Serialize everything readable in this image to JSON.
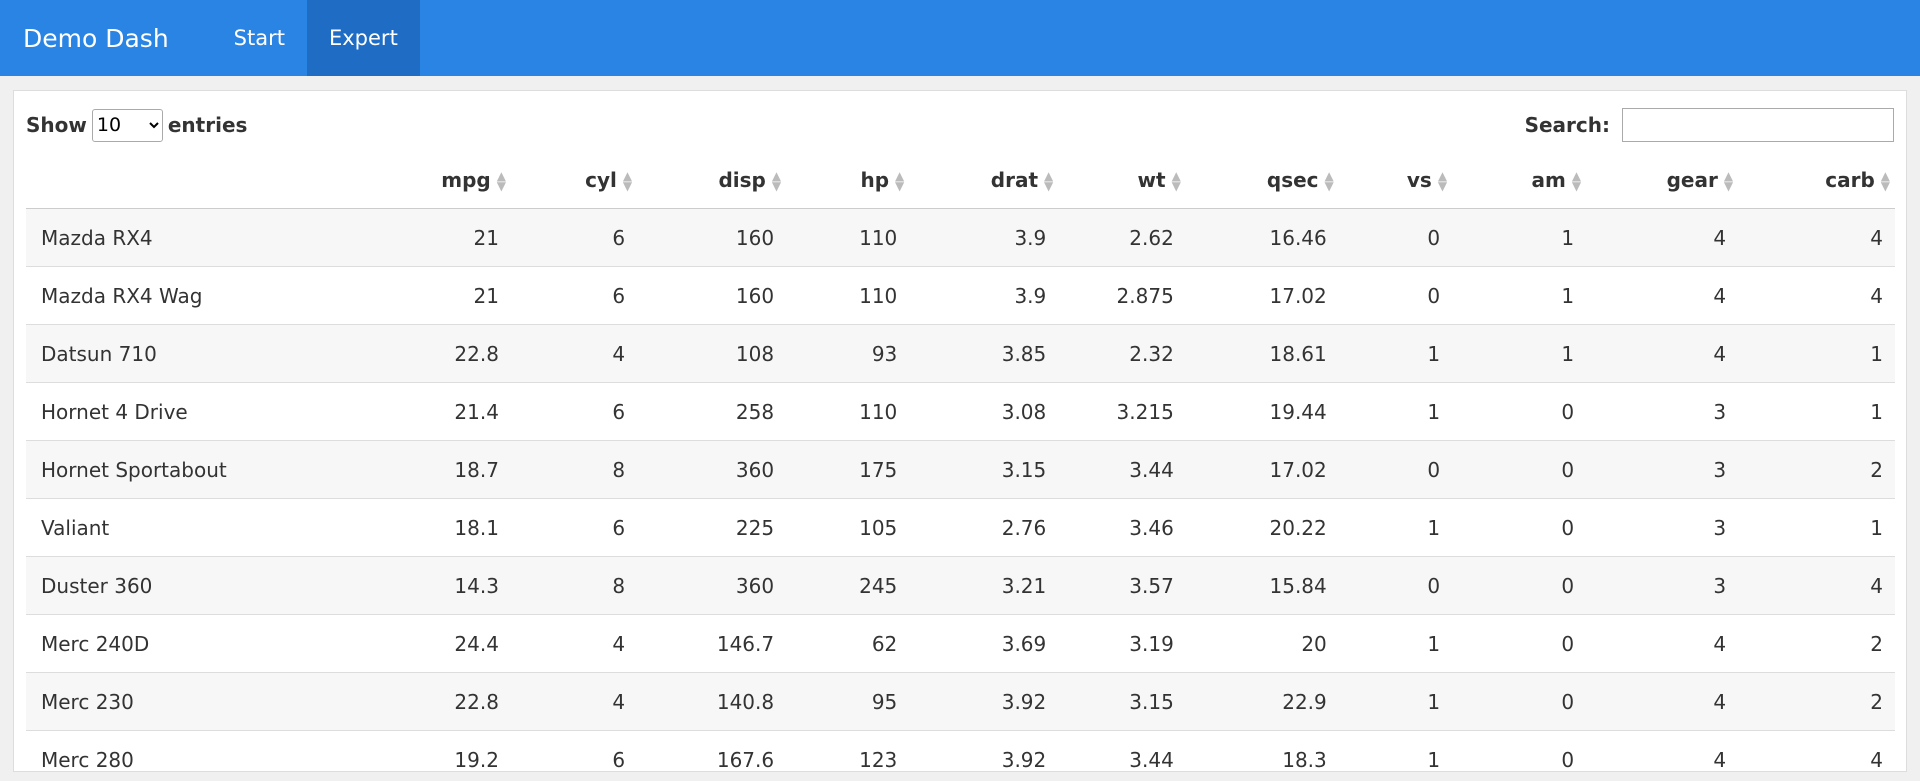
{
  "navbar": {
    "brand": "Demo Dash",
    "items": [
      {
        "label": "Start",
        "active": false
      },
      {
        "label": "Expert",
        "active": true
      }
    ]
  },
  "controls": {
    "show_label": "Show",
    "entries_value": "10",
    "entries_label": "entries",
    "search_label": "Search:",
    "search_value": ""
  },
  "table": {
    "columns": [
      "",
      "mpg",
      "cyl",
      "disp",
      "hp",
      "drat",
      "wt",
      "qsec",
      "vs",
      "am",
      "gear",
      "carb"
    ],
    "rows": [
      [
        "Mazda RX4",
        "21",
        "6",
        "160",
        "110",
        "3.9",
        "2.62",
        "16.46",
        "0",
        "1",
        "4",
        "4"
      ],
      [
        "Mazda RX4 Wag",
        "21",
        "6",
        "160",
        "110",
        "3.9",
        "2.875",
        "17.02",
        "0",
        "1",
        "4",
        "4"
      ],
      [
        "Datsun 710",
        "22.8",
        "4",
        "108",
        "93",
        "3.85",
        "2.32",
        "18.61",
        "1",
        "1",
        "4",
        "1"
      ],
      [
        "Hornet 4 Drive",
        "21.4",
        "6",
        "258",
        "110",
        "3.08",
        "3.215",
        "19.44",
        "1",
        "0",
        "3",
        "1"
      ],
      [
        "Hornet Sportabout",
        "18.7",
        "8",
        "360",
        "175",
        "3.15",
        "3.44",
        "17.02",
        "0",
        "0",
        "3",
        "2"
      ],
      [
        "Valiant",
        "18.1",
        "6",
        "225",
        "105",
        "2.76",
        "3.46",
        "20.22",
        "1",
        "0",
        "3",
        "1"
      ],
      [
        "Duster 360",
        "14.3",
        "8",
        "360",
        "245",
        "3.21",
        "3.57",
        "15.84",
        "0",
        "0",
        "3",
        "4"
      ],
      [
        "Merc 240D",
        "24.4",
        "4",
        "146.7",
        "62",
        "3.69",
        "3.19",
        "20",
        "1",
        "0",
        "4",
        "2"
      ],
      [
        "Merc 230",
        "22.8",
        "4",
        "140.8",
        "95",
        "3.92",
        "3.15",
        "22.9",
        "1",
        "0",
        "4",
        "2"
      ],
      [
        "Merc 280",
        "19.2",
        "6",
        "167.6",
        "123",
        "3.92",
        "3.44",
        "18.3",
        "1",
        "0",
        "4",
        "4"
      ]
    ]
  }
}
